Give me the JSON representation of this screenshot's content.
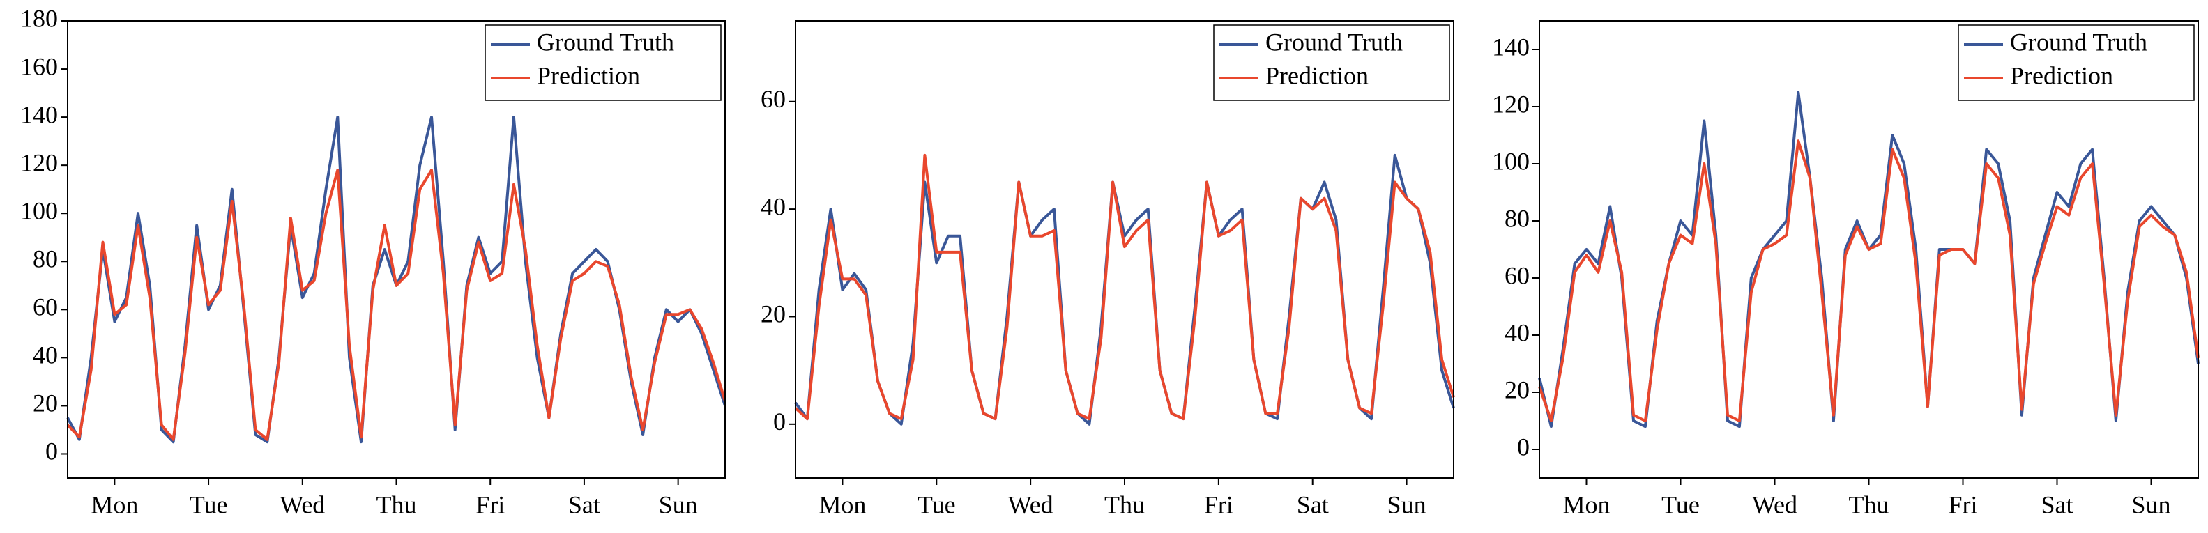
{
  "chart_data": [
    {
      "type": "line",
      "legend": "upper right",
      "x": [
        0,
        3,
        6,
        9,
        12,
        15,
        18,
        21,
        24,
        27,
        30,
        33,
        36,
        39,
        42,
        45,
        48,
        51,
        54,
        57,
        60,
        63,
        66,
        69,
        72,
        75,
        78,
        81,
        84,
        87,
        90,
        93,
        96,
        99,
        102,
        105,
        108,
        111,
        114,
        117,
        120,
        123,
        126,
        129,
        132,
        135,
        138,
        141,
        144,
        147,
        150,
        153,
        156,
        159,
        162,
        165,
        168
      ],
      "xlim": [
        0,
        168
      ],
      "xticks": [
        {
          "value": 12,
          "label": "Mon"
        },
        {
          "value": 36,
          "label": "Tue"
        },
        {
          "value": 60,
          "label": "Wed"
        },
        {
          "value": 84,
          "label": "Thu"
        },
        {
          "value": 108,
          "label": "Fri"
        },
        {
          "value": 132,
          "label": "Sat"
        },
        {
          "value": 156,
          "label": "Sun"
        }
      ],
      "ylim": [
        -10,
        180
      ],
      "yticks": [
        0,
        20,
        40,
        60,
        80,
        100,
        120,
        140,
        160,
        180
      ],
      "series": [
        {
          "name": "Ground Truth",
          "color": "#3a5798",
          "values": [
            15,
            6,
            40,
            85,
            55,
            65,
            100,
            70,
            10,
            5,
            45,
            95,
            60,
            70,
            110,
            60,
            8,
            5,
            40,
            95,
            65,
            75,
            110,
            140,
            40,
            5,
            70,
            85,
            70,
            80,
            120,
            140,
            80,
            10,
            70,
            90,
            75,
            80,
            140,
            80,
            40,
            15,
            50,
            75,
            80,
            85,
            80,
            60,
            30,
            8,
            40,
            60,
            55,
            60,
            50,
            35,
            20
          ]
        },
        {
          "name": "Prediction",
          "color": "#e9472d",
          "values": [
            12,
            7,
            35,
            88,
            58,
            62,
            95,
            65,
            12,
            6,
            42,
            90,
            62,
            68,
            105,
            62,
            10,
            6,
            38,
            98,
            68,
            72,
            100,
            118,
            45,
            7,
            68,
            95,
            70,
            75,
            110,
            118,
            75,
            12,
            68,
            88,
            72,
            75,
            112,
            85,
            45,
            15,
            48,
            72,
            75,
            80,
            78,
            62,
            32,
            10,
            38,
            58,
            58,
            60,
            52,
            38,
            22
          ]
        }
      ]
    },
    {
      "type": "line",
      "legend": "upper right",
      "x": [
        0,
        3,
        6,
        9,
        12,
        15,
        18,
        21,
        24,
        27,
        30,
        33,
        36,
        39,
        42,
        45,
        48,
        51,
        54,
        57,
        60,
        63,
        66,
        69,
        72,
        75,
        78,
        81,
        84,
        87,
        90,
        93,
        96,
        99,
        102,
        105,
        108,
        111,
        114,
        117,
        120,
        123,
        126,
        129,
        132,
        135,
        138,
        141,
        144,
        147,
        150,
        153,
        156,
        159,
        162,
        165,
        168
      ],
      "xlim": [
        0,
        168
      ],
      "xticks": [
        {
          "value": 12,
          "label": "Mon"
        },
        {
          "value": 36,
          "label": "Tue"
        },
        {
          "value": 60,
          "label": "Wed"
        },
        {
          "value": 84,
          "label": "Thu"
        },
        {
          "value": 108,
          "label": "Fri"
        },
        {
          "value": 132,
          "label": "Sat"
        },
        {
          "value": 156,
          "label": "Sun"
        }
      ],
      "ylim": [
        -10,
        75
      ],
      "yticks": [
        0,
        20,
        40,
        60
      ],
      "series": [
        {
          "name": "Ground Truth",
          "color": "#3a5798",
          "values": [
            4,
            1,
            25,
            40,
            25,
            28,
            25,
            8,
            2,
            0,
            15,
            45,
            30,
            35,
            35,
            10,
            2,
            1,
            20,
            45,
            35,
            38,
            40,
            10,
            2,
            0,
            18,
            45,
            35,
            38,
            40,
            10,
            2,
            1,
            22,
            45,
            35,
            38,
            40,
            12,
            2,
            1,
            20,
            42,
            40,
            45,
            38,
            12,
            3,
            1,
            25,
            50,
            42,
            40,
            30,
            10,
            3
          ]
        },
        {
          "name": "Prediction",
          "color": "#e9472d",
          "values": [
            3,
            1,
            22,
            38,
            27,
            27,
            24,
            8,
            2,
            1,
            12,
            50,
            32,
            32,
            32,
            10,
            2,
            1,
            18,
            45,
            35,
            35,
            36,
            10,
            2,
            1,
            16,
            45,
            33,
            36,
            38,
            10,
            2,
            1,
            20,
            45,
            35,
            36,
            38,
            12,
            2,
            2,
            18,
            42,
            40,
            42,
            36,
            12,
            3,
            2,
            22,
            45,
            42,
            40,
            32,
            12,
            5
          ]
        }
      ]
    },
    {
      "type": "line",
      "legend": "upper right",
      "x": [
        0,
        3,
        6,
        9,
        12,
        15,
        18,
        21,
        24,
        27,
        30,
        33,
        36,
        39,
        42,
        45,
        48,
        51,
        54,
        57,
        60,
        63,
        66,
        69,
        72,
        75,
        78,
        81,
        84,
        87,
        90,
        93,
        96,
        99,
        102,
        105,
        108,
        111,
        114,
        117,
        120,
        123,
        126,
        129,
        132,
        135,
        138,
        141,
        144,
        147,
        150,
        153,
        156,
        159,
        162,
        165,
        168
      ],
      "xlim": [
        0,
        168
      ],
      "xticks": [
        {
          "value": 12,
          "label": "Mon"
        },
        {
          "value": 36,
          "label": "Tue"
        },
        {
          "value": 60,
          "label": "Wed"
        },
        {
          "value": 84,
          "label": "Thu"
        },
        {
          "value": 108,
          "label": "Fri"
        },
        {
          "value": 132,
          "label": "Sat"
        },
        {
          "value": 156,
          "label": "Sun"
        }
      ],
      "ylim": [
        -10,
        150
      ],
      "yticks": [
        0,
        20,
        40,
        60,
        80,
        100,
        120,
        140
      ],
      "series": [
        {
          "name": "Ground Truth",
          "color": "#3a5798",
          "values": [
            25,
            8,
            35,
            65,
            70,
            65,
            85,
            60,
            10,
            8,
            45,
            65,
            80,
            75,
            115,
            75,
            10,
            8,
            60,
            70,
            75,
            80,
            125,
            95,
            60,
            10,
            70,
            80,
            70,
            75,
            110,
            100,
            70,
            15,
            70,
            70,
            70,
            65,
            105,
            100,
            80,
            12,
            60,
            75,
            90,
            85,
            100,
            105,
            60,
            10,
            55,
            80,
            85,
            80,
            75,
            60,
            30
          ]
        },
        {
          "name": "Prediction",
          "color": "#e9472d",
          "values": [
            22,
            10,
            32,
            62,
            68,
            62,
            80,
            62,
            12,
            10,
            42,
            65,
            75,
            72,
            100,
            72,
            12,
            10,
            55,
            70,
            72,
            75,
            108,
            95,
            55,
            12,
            68,
            78,
            70,
            72,
            105,
            95,
            65,
            15,
            68,
            70,
            70,
            65,
            100,
            95,
            75,
            14,
            58,
            72,
            85,
            82,
            95,
            100,
            58,
            12,
            52,
            78,
            82,
            78,
            75,
            62,
            32
          ]
        }
      ]
    }
  ]
}
